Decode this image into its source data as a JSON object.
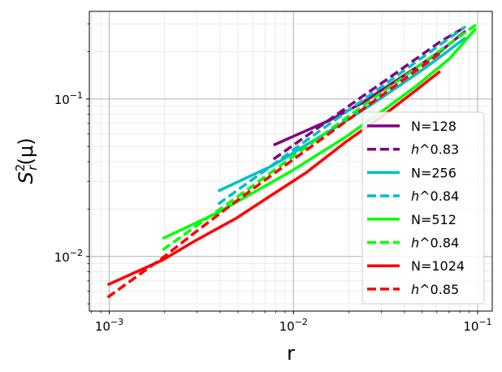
{
  "chart_data": {
    "type": "line",
    "xlabel": "r",
    "ylabel_main": "S",
    "ylabel_sup": "2",
    "ylabel_sub": "r",
    "ylabel_tail": "(μ)",
    "xscale": "log",
    "yscale": "log",
    "xlim": [
      0.00078,
      0.12
    ],
    "ylim": [
      0.0045,
      0.36
    ],
    "grid": true,
    "legend_position": "lower-right",
    "x_major_ticks": [
      {
        "value": 0.001,
        "base": "10",
        "exp": "−3"
      },
      {
        "value": 0.01,
        "base": "10",
        "exp": "−2"
      },
      {
        "value": 0.1,
        "base": "10",
        "exp": "−1"
      }
    ],
    "y_major_ticks": [
      {
        "value": 0.01,
        "base": "10",
        "exp": "−2"
      },
      {
        "value": 0.1,
        "base": "10",
        "exp": "−1"
      }
    ],
    "series": [
      {
        "name": "N=128",
        "style": "solid",
        "color": "#800080",
        "x": [
          0.0078,
          0.0156,
          0.0234,
          0.0313,
          0.0469,
          0.0625,
          0.0859
        ],
        "y": [
          0.051,
          0.073,
          0.094,
          0.117,
          0.16,
          0.2,
          0.27
        ]
      },
      {
        "name_math": "h",
        "name_rest": "^0.83",
        "style": "dashed",
        "color": "#800080",
        "x": [
          0.0078,
          0.0156,
          0.0234,
          0.0313,
          0.0469,
          0.0625,
          0.0859
        ],
        "y": [
          0.0415,
          0.0736,
          0.1028,
          0.1301,
          0.1818,
          0.2305,
          0.2871
        ]
      },
      {
        "name": "N=256",
        "style": "solid",
        "color": "#00BFC4",
        "x": [
          0.0039,
          0.0078,
          0.0117,
          0.0195,
          0.0313,
          0.0469,
          0.0625,
          0.0859
        ],
        "y": [
          0.026,
          0.038,
          0.051,
          0.073,
          0.105,
          0.145,
          0.185,
          0.245
        ]
      },
      {
        "name_math": "h",
        "name_rest": "^0.84",
        "style": "dashed",
        "color": "#00BFC4",
        "x": [
          0.0039,
          0.0078,
          0.0117,
          0.0195,
          0.0313,
          0.0469,
          0.0625,
          0.0859
        ],
        "y": [
          0.0215,
          0.0385,
          0.0543,
          0.0832,
          0.1236,
          0.1736,
          0.2212,
          0.2884
        ]
      },
      {
        "name": "N=512",
        "style": "solid",
        "color": "#00FF00",
        "x": [
          0.00195,
          0.0039,
          0.0059,
          0.0098,
          0.0195,
          0.0313,
          0.0469,
          0.0703,
          0.0977
        ],
        "y": [
          0.013,
          0.019,
          0.025,
          0.035,
          0.058,
          0.086,
          0.122,
          0.18,
          0.28
        ]
      },
      {
        "name_math": "h",
        "name_rest": "^0.84",
        "style": "dashed",
        "color": "#00FF00",
        "x": [
          0.00195,
          0.0039,
          0.0059,
          0.0098,
          0.0195,
          0.0313,
          0.0469,
          0.0703,
          0.0977
        ],
        "y": [
          0.011,
          0.0196,
          0.0277,
          0.0426,
          0.0763,
          0.1134,
          0.1593,
          0.2241,
          0.2951
        ]
      },
      {
        "name": "N=1024",
        "style": "solid",
        "color": "#FF0000",
        "x": [
          0.00098,
          0.00195,
          0.0029,
          0.0049,
          0.0078,
          0.0117,
          0.0195,
          0.0313,
          0.0469,
          0.0625
        ],
        "y": [
          0.0066,
          0.0095,
          0.0125,
          0.0175,
          0.025,
          0.034,
          0.054,
          0.08,
          0.115,
          0.15
        ]
      },
      {
        "name_math": "h",
        "name_rest": "^0.85",
        "style": "dashed",
        "color": "#FF0000",
        "x": [
          0.00098,
          0.00195,
          0.0029,
          0.0049,
          0.0078,
          0.0117,
          0.0195,
          0.0313,
          0.0469,
          0.0625
        ],
        "y": [
          0.0055,
          0.0098,
          0.0141,
          0.0225,
          0.0335,
          0.0472,
          0.0727,
          0.1087,
          0.1529,
          0.1954
        ]
      }
    ]
  }
}
